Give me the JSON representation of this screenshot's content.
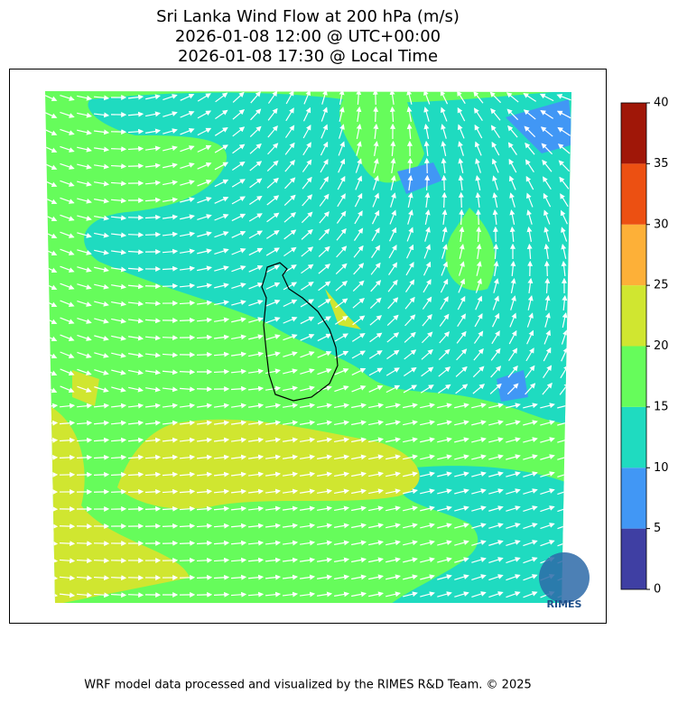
{
  "title": [
    "Sri Lanka Wind Flow at 200 hPa (m/s)",
    "2026-01-08 12:00 @ UTC+00:00",
    "2026-01-08 17:30 @ Local Time"
  ],
  "colorbar": {
    "bounds": [
      0,
      5,
      10,
      15,
      20,
      25,
      30,
      35,
      40
    ],
    "colors": [
      "#3f3fa3",
      "#4197f5",
      "#1fdbc0",
      "#66fc5b",
      "#d0e630",
      "#fdb038",
      "#ec5012",
      "#a01708"
    ]
  },
  "logo": "RIMES",
  "footer": "WRF model data processed and visualized by the RIMES R&D Team. © 2025"
}
